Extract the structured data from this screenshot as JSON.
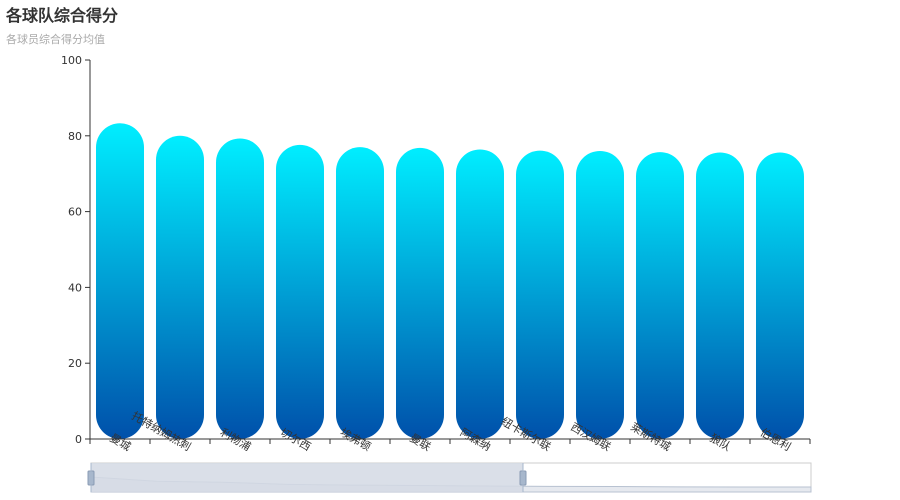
{
  "chart_data": {
    "type": "bar",
    "title": "各球队综合得分",
    "subtitle": "各球员综合得分均值",
    "categories": [
      "曼城",
      "托特纳姆热刺",
      "利物浦",
      "切尔西",
      "埃弗顿",
      "曼联",
      "阿森纳",
      "纽卡斯尔联",
      "西汉姆联",
      "莱斯特城",
      "狼队",
      "伯恩利"
    ],
    "values": [
      83.3,
      80.0,
      79.3,
      77.6,
      77.0,
      76.8,
      76.4,
      76.1,
      76.0,
      75.7,
      75.6,
      75.6
    ],
    "ylim": [
      0,
      100
    ],
    "yticks": [
      0,
      20,
      40,
      60,
      80,
      100
    ],
    "xlabel": "",
    "ylabel": "",
    "grid": false,
    "bar_gradient": [
      "#00eeff",
      "#0050aa"
    ],
    "axis_color": "#333333",
    "datazoom": {
      "window": [
        0,
        60
      ],
      "fill": "#d3d9e4",
      "border": "#cccccc",
      "handle": "#a7b7cc"
    }
  }
}
